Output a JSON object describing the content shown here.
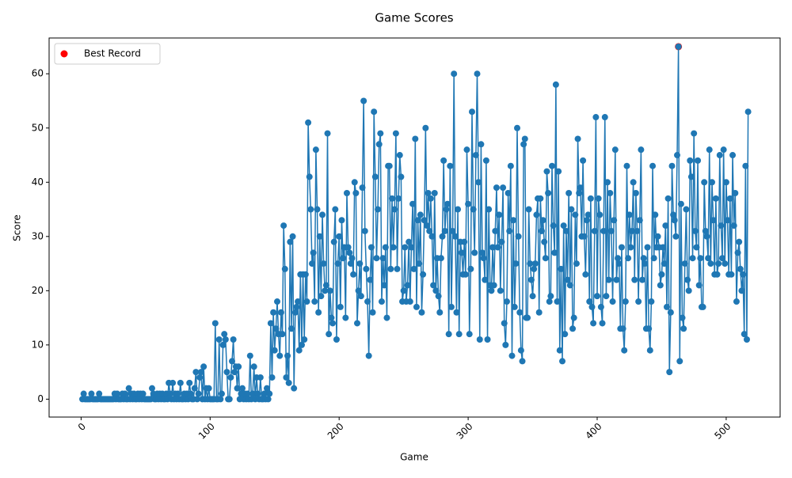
{
  "chart_data": {
    "type": "line",
    "title": "Game Scores",
    "xlabel": "Game",
    "ylabel": "Score",
    "xlim": [
      -24.8,
      541.8
    ],
    "ylim": [
      -3.3,
      66.6
    ],
    "xticks": [
      0,
      100,
      200,
      300,
      400,
      500
    ],
    "yticks": [
      0,
      10,
      20,
      30,
      40,
      50,
      60
    ],
    "legend": "upper left",
    "series": [
      {
        "color": "#1f77b4",
        "marker": true,
        "x": [
          1,
          2,
          3,
          4,
          5,
          6,
          7,
          8,
          9,
          10,
          11,
          12,
          13,
          14,
          15,
          16,
          17,
          18,
          19,
          20,
          21,
          22,
          23,
          24,
          25,
          26,
          27,
          28,
          29,
          30,
          31,
          32,
          33,
          34,
          35,
          36,
          37,
          38,
          39,
          40,
          41,
          42,
          43,
          44,
          45,
          46,
          47,
          48,
          49,
          50,
          51,
          52,
          53,
          54,
          55,
          56,
          57,
          58,
          59,
          60,
          61,
          62,
          63,
          64,
          65,
          66,
          67,
          68,
          69,
          70,
          71,
          72,
          73,
          74,
          75,
          76,
          77,
          78,
          79,
          80,
          81,
          82,
          83,
          84,
          85,
          86,
          87,
          88,
          89,
          90,
          91,
          92,
          93,
          94,
          95,
          96,
          97,
          98,
          99,
          100,
          101,
          102,
          103,
          104,
          105,
          106,
          107,
          108,
          109,
          110,
          111,
          112,
          113,
          114,
          115,
          116,
          117,
          118,
          119,
          120,
          121,
          122,
          123,
          124,
          125,
          126,
          127,
          128,
          129,
          130,
          131,
          132,
          133,
          134,
          135,
          136,
          137,
          138,
          139,
          140,
          141,
          142,
          143,
          144,
          145,
          146,
          147,
          148,
          149,
          150,
          151,
          152,
          153,
          154,
          155,
          156,
          157,
          158,
          159,
          160,
          161,
          162,
          163,
          164,
          165,
          166,
          167,
          168,
          169,
          170,
          171,
          172,
          173,
          174,
          175,
          176,
          177,
          178,
          179,
          180,
          181,
          182,
          183,
          184,
          185,
          186,
          187,
          188,
          189,
          190,
          191,
          192,
          193,
          194,
          195,
          196,
          197,
          198,
          199,
          200,
          201,
          202,
          203,
          204,
          205,
          206,
          207,
          208,
          209,
          210,
          211,
          212,
          213,
          214,
          215,
          216,
          217,
          218,
          219,
          220,
          221,
          222,
          223,
          224,
          225,
          226,
          227,
          228,
          229,
          230,
          231,
          232,
          233,
          234,
          235,
          236,
          237,
          238,
          239,
          240,
          241,
          242,
          243,
          244,
          245,
          246,
          247,
          248,
          249,
          250,
          251,
          252,
          253,
          254,
          255,
          256,
          257,
          258,
          259,
          260,
          261,
          262,
          263,
          264,
          265,
          266,
          267,
          268,
          269,
          270,
          271,
          272,
          273,
          274,
          275,
          276,
          277,
          278,
          279,
          280,
          281,
          282,
          283,
          284,
          285,
          286,
          287,
          288,
          289,
          290,
          291,
          292,
          293,
          294,
          295,
          296,
          297,
          298,
          299,
          300,
          301,
          302,
          303,
          304,
          305,
          306,
          307,
          308,
          309,
          310,
          311,
          312,
          313,
          314,
          315,
          316,
          317,
          318,
          319,
          320,
          321,
          322,
          323,
          324,
          325,
          326,
          327,
          328,
          329,
          330,
          331,
          332,
          333,
          334,
          335,
          336,
          337,
          338,
          339,
          340,
          341,
          342,
          343,
          344,
          345,
          346,
          347,
          348,
          349,
          350,
          351,
          352,
          353,
          354,
          355,
          356,
          357,
          358,
          359,
          360,
          361,
          362,
          363,
          364,
          365,
          366,
          367,
          368,
          369,
          370,
          371,
          372,
          373,
          374,
          375,
          376,
          377,
          378,
          379,
          380,
          381,
          382,
          383,
          384,
          385,
          386,
          387,
          388,
          389,
          390,
          391,
          392,
          393,
          394,
          395,
          396,
          397,
          398,
          399,
          400,
          401,
          402,
          403,
          404,
          405,
          406,
          407,
          408,
          409,
          410,
          411,
          412,
          413,
          414,
          415,
          416,
          417,
          418,
          419,
          420,
          421,
          422,
          423,
          424,
          425,
          426,
          427,
          428,
          429,
          430,
          431,
          432,
          433,
          434,
          435,
          436,
          437,
          438,
          439,
          440,
          441,
          442,
          443,
          444,
          445,
          446,
          447,
          448,
          449,
          450,
          451,
          452,
          453,
          454,
          455,
          456,
          457,
          458,
          459,
          460,
          461,
          462,
          463,
          464,
          465,
          466,
          467,
          468,
          469,
          470,
          471,
          472,
          473,
          474,
          475,
          476,
          477,
          478,
          479,
          480,
          481,
          482,
          483,
          484,
          485,
          486,
          487,
          488,
          489,
          490,
          491,
          492,
          493,
          494,
          495,
          496,
          497,
          498,
          499,
          500,
          501,
          502,
          503,
          504,
          505,
          506,
          507,
          508,
          509,
          510,
          511,
          512,
          513,
          514,
          515,
          516,
          517
        ],
        "values": [
          0,
          1,
          0,
          0,
          0,
          0,
          0,
          1,
          0,
          0,
          0,
          0,
          0,
          1,
          0,
          0,
          0,
          0,
          0,
          0,
          0,
          0,
          0,
          0,
          0,
          1,
          0,
          1,
          0,
          0,
          0,
          1,
          0,
          1,
          0,
          0,
          2,
          0,
          1,
          0,
          1,
          0,
          0,
          1,
          0,
          1,
          0,
          1,
          0,
          0,
          0,
          0,
          0,
          0,
          2,
          1,
          0,
          0,
          1,
          0,
          1,
          0,
          1,
          0,
          0,
          1,
          0,
          3,
          1,
          0,
          3,
          0,
          1,
          0,
          1,
          0,
          3,
          0,
          0,
          1,
          0,
          1,
          0,
          3,
          1,
          0,
          0,
          2,
          5,
          0,
          1,
          4,
          5,
          0,
          6,
          0,
          2,
          0,
          2,
          0,
          0,
          0,
          0,
          14,
          0,
          0,
          11,
          0,
          1,
          10,
          12,
          11,
          5,
          0,
          0,
          4,
          7,
          11,
          5,
          6,
          2,
          6,
          0,
          1,
          2,
          0,
          1,
          0,
          1,
          0,
          8,
          0,
          1,
          6,
          0,
          4,
          1,
          0,
          4,
          0,
          0,
          1,
          0,
          2,
          0,
          1,
          14,
          4,
          16,
          9,
          13,
          18,
          12,
          8,
          16,
          12,
          32,
          24,
          4,
          8,
          3,
          29,
          13,
          30,
          2,
          16,
          17,
          18,
          9,
          23,
          10,
          23,
          11,
          23,
          18,
          51,
          41,
          35,
          25,
          27,
          18,
          46,
          35,
          16,
          30,
          19,
          34,
          25,
          20,
          21,
          49,
          12,
          20,
          15,
          14,
          29,
          35,
          11,
          25,
          30,
          17,
          33,
          26,
          28,
          15,
          38,
          28,
          27,
          25,
          26,
          23,
          40,
          38,
          14,
          20,
          25,
          19,
          39,
          55,
          31,
          24,
          18,
          8,
          22,
          28,
          16,
          53,
          41,
          26,
          35,
          47,
          49,
          18,
          26,
          21,
          28,
          15,
          43,
          43,
          24,
          37,
          28,
          35,
          49,
          24,
          37,
          45,
          41,
          18,
          20,
          28,
          18,
          21,
          29,
          18,
          28,
          36,
          24,
          48,
          17,
          33,
          25,
          34,
          16,
          23,
          33,
          50,
          32,
          38,
          31,
          37,
          30,
          21,
          38,
          20,
          26,
          19,
          16,
          26,
          30,
          44,
          31,
          35,
          36,
          12,
          43,
          17,
          31,
          60,
          30,
          16,
          35,
          12,
          29,
          27,
          23,
          29,
          23,
          46,
          36,
          12,
          24,
          53,
          35,
          27,
          45,
          60,
          40,
          11,
          47,
          27,
          26,
          22,
          44,
          11,
          35,
          21,
          20,
          28,
          21,
          31,
          39,
          28,
          34,
          20,
          29,
          39,
          14,
          10,
          18,
          38,
          31,
          43,
          8,
          33,
          17,
          25,
          50,
          30,
          16,
          9,
          7,
          47,
          48,
          15,
          15,
          35,
          25,
          22,
          19,
          24,
          25,
          34,
          37,
          16,
          37,
          31,
          33,
          29,
          26,
          42,
          38,
          18,
          19,
          43,
          32,
          27,
          58,
          18,
          42,
          9,
          24,
          7,
          32,
          12,
          31,
          22,
          38,
          21,
          35,
          13,
          15,
          34,
          25,
          48,
          38,
          39,
          30,
          44,
          30,
          23,
          33,
          34,
          18,
          37,
          17,
          14,
          31,
          52,
          19,
          37,
          34,
          17,
          14,
          31,
          52,
          19,
          40,
          22,
          38,
          31,
          18,
          33,
          46,
          22,
          26,
          25,
          13,
          28,
          13,
          9,
          18,
          43,
          26,
          34,
          28,
          31,
          40,
          22,
          38,
          31,
          18,
          33,
          46,
          22,
          26,
          25,
          13,
          28,
          13,
          9,
          18,
          43,
          26,
          34,
          28,
          30,
          28,
          21,
          23,
          28,
          25,
          32,
          17,
          37,
          5,
          16,
          43,
          34,
          33,
          30,
          45,
          65,
          7,
          36,
          15,
          13,
          25,
          35,
          22,
          20,
          44,
          41,
          26,
          49,
          31,
          28,
          44,
          21,
          26,
          17,
          17,
          40,
          31,
          30,
          26,
          46,
          25,
          40,
          33,
          23,
          37,
          23,
          25,
          45,
          32,
          26,
          46,
          25,
          40,
          33,
          23,
          37,
          23,
          45,
          32,
          38,
          18,
          27,
          29,
          24,
          20,
          23,
          12,
          43,
          11,
          53
        ]
      },
      {
        "type": "scatter",
        "name": "Best Record",
        "color": "red",
        "x": [
          463
        ],
        "values": [
          65
        ]
      }
    ]
  }
}
